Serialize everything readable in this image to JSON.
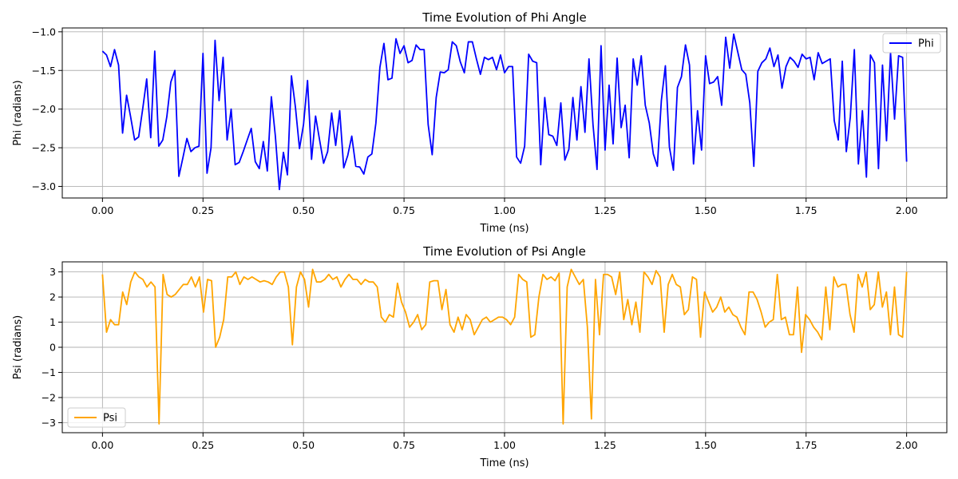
{
  "chart_data": [
    {
      "type": "line",
      "title": "Time Evolution of Phi Angle",
      "xlabel": "Time (ns)",
      "ylabel": "Phi (radians)",
      "xlim": [
        -0.1,
        2.1
      ],
      "ylim": [
        -3.15,
        -0.95
      ],
      "xticks": [
        "0.00",
        "0.25",
        "0.50",
        "0.75",
        "1.00",
        "1.25",
        "1.50",
        "1.75",
        "2.00"
      ],
      "xtick_values": [
        0,
        0.25,
        0.5,
        0.75,
        1.0,
        1.25,
        1.5,
        1.75,
        2.0
      ],
      "yticks": [
        "−3.0",
        "−2.5",
        "−2.0",
        "−1.5",
        "−1.0"
      ],
      "ytick_values": [
        -3.0,
        -2.5,
        -2.0,
        -1.5,
        -1.0
      ],
      "grid": true,
      "legend_position": "upper right",
      "x_start": 0,
      "x_end": 2.0,
      "series": [
        {
          "name": "Phi",
          "color": "#0000ff",
          "values": [
            -1.25,
            -1.3,
            -1.45,
            -1.23,
            -1.43,
            -2.31,
            -1.82,
            -2.1,
            -2.4,
            -2.36,
            -2.0,
            -1.61,
            -2.37,
            -1.25,
            -2.48,
            -2.4,
            -2.1,
            -1.65,
            -1.5,
            -2.87,
            -2.63,
            -2.38,
            -2.55,
            -2.5,
            -2.48,
            -1.28,
            -2.83,
            -2.5,
            -1.11,
            -1.89,
            -1.33,
            -2.4,
            -2.0,
            -2.72,
            -2.69,
            -2.55,
            -2.4,
            -2.25,
            -2.68,
            -2.77,
            -2.42,
            -2.8,
            -1.84,
            -2.35,
            -3.04,
            -2.56,
            -2.85,
            -1.57,
            -1.98,
            -2.51,
            -2.2,
            -1.63,
            -2.65,
            -2.09,
            -2.4,
            -2.7,
            -2.55,
            -2.05,
            -2.47,
            -2.02,
            -2.76,
            -2.6,
            -2.35,
            -2.74,
            -2.75,
            -2.84,
            -2.62,
            -2.58,
            -2.18,
            -1.46,
            -1.15,
            -1.62,
            -1.6,
            -1.09,
            -1.28,
            -1.18,
            -1.4,
            -1.37,
            -1.17,
            -1.23,
            -1.23,
            -2.2,
            -2.59,
            -1.85,
            -1.52,
            -1.53,
            -1.49,
            -1.13,
            -1.18,
            -1.39,
            -1.53,
            -1.13,
            -1.13,
            -1.35,
            -1.55,
            -1.33,
            -1.36,
            -1.33,
            -1.49,
            -1.3,
            -1.53,
            -1.45,
            -1.45,
            -2.62,
            -2.7,
            -2.48,
            -1.29,
            -1.38,
            -1.4,
            -2.72,
            -1.85,
            -2.33,
            -2.35,
            -2.47,
            -1.92,
            -2.66,
            -2.52,
            -1.85,
            -2.4,
            -1.71,
            -2.3,
            -1.35,
            -2.2,
            -2.78,
            -1.18,
            -2.53,
            -1.69,
            -2.45,
            -1.34,
            -2.24,
            -1.95,
            -2.63,
            -1.35,
            -1.69,
            -1.31,
            -1.95,
            -2.18,
            -2.58,
            -2.74,
            -1.89,
            -1.44,
            -2.49,
            -2.79,
            -1.72,
            -1.58,
            -1.17,
            -1.43,
            -2.71,
            -2.02,
            -2.53,
            -1.31,
            -1.67,
            -1.65,
            -1.58,
            -1.95,
            -1.07,
            -1.47,
            -1.03,
            -1.26,
            -1.49,
            -1.55,
            -1.92,
            -2.74,
            -1.51,
            -1.4,
            -1.35,
            -1.21,
            -1.45,
            -1.3,
            -1.73,
            -1.45,
            -1.33,
            -1.38,
            -1.46,
            -1.29,
            -1.35,
            -1.33,
            -1.62,
            -1.27,
            -1.41,
            -1.38,
            -1.35,
            -2.15,
            -2.4,
            -1.38,
            -2.55,
            -2.1,
            -1.23,
            -2.71,
            -2.02,
            -2.88,
            -1.3,
            -1.4,
            -2.77,
            -1.43,
            -2.41,
            -1.27,
            -2.13,
            -1.31,
            -1.33,
            -2.68
          ]
        }
      ]
    },
    {
      "type": "line",
      "title": "Time Evolution of Psi Angle",
      "xlabel": "Time (ns)",
      "ylabel": "Psi (radians)",
      "xlim": [
        -0.1,
        2.1
      ],
      "ylim": [
        -3.4,
        3.4
      ],
      "xticks": [
        "0.00",
        "0.25",
        "0.50",
        "0.75",
        "1.00",
        "1.25",
        "1.50",
        "1.75",
        "2.00"
      ],
      "xtick_values": [
        0,
        0.25,
        0.5,
        0.75,
        1.0,
        1.25,
        1.5,
        1.75,
        2.0
      ],
      "yticks": [
        "−3",
        "−2",
        "−1",
        "0",
        "1",
        "2",
        "3"
      ],
      "ytick_values": [
        -3,
        -2,
        -1,
        0,
        1,
        2,
        3
      ],
      "grid": true,
      "legend_position": "lower left",
      "x_start": 0,
      "x_end": 2.0,
      "series": [
        {
          "name": "Psi",
          "color": "#ffa500",
          "values": [
            2.9,
            0.6,
            1.1,
            0.9,
            0.9,
            2.2,
            1.7,
            2.6,
            3.0,
            2.8,
            2.7,
            2.4,
            2.6,
            2.4,
            -3.05,
            2.9,
            2.1,
            2.0,
            2.1,
            2.3,
            2.5,
            2.5,
            2.8,
            2.4,
            2.8,
            1.4,
            2.7,
            2.65,
            0.0,
            0.4,
            1.1,
            2.8,
            2.8,
            3.0,
            2.5,
            2.8,
            2.7,
            2.8,
            2.7,
            2.6,
            2.65,
            2.6,
            2.5,
            2.8,
            3.0,
            3.0,
            2.4,
            0.1,
            2.4,
            3.0,
            2.7,
            1.6,
            3.1,
            2.6,
            2.6,
            2.7,
            2.9,
            2.7,
            2.8,
            2.4,
            2.7,
            2.9,
            2.7,
            2.7,
            2.5,
            2.7,
            2.6,
            2.6,
            2.4,
            1.2,
            1.0,
            1.3,
            1.2,
            2.55,
            1.8,
            1.4,
            0.8,
            1.0,
            1.3,
            0.7,
            0.9,
            2.6,
            2.65,
            2.65,
            1.5,
            2.3,
            0.9,
            0.6,
            1.2,
            0.7,
            1.3,
            1.1,
            0.5,
            0.8,
            1.1,
            1.2,
            1.0,
            1.1,
            1.2,
            1.2,
            1.1,
            0.9,
            1.2,
            2.9,
            2.7,
            2.6,
            0.4,
            0.5,
            2.0,
            2.9,
            2.7,
            2.8,
            2.65,
            2.95,
            -3.05,
            2.4,
            3.1,
            2.8,
            2.5,
            2.7,
            0.8,
            -2.85,
            2.7,
            0.5,
            2.9,
            2.9,
            2.8,
            2.1,
            3.0,
            1.1,
            1.9,
            0.9,
            1.8,
            0.6,
            3.0,
            2.8,
            2.5,
            3.05,
            2.8,
            0.6,
            2.5,
            2.9,
            2.5,
            2.4,
            1.3,
            1.5,
            2.8,
            2.7,
            0.4,
            2.2,
            1.8,
            1.4,
            1.6,
            2.0,
            1.4,
            1.6,
            1.3,
            1.2,
            0.8,
            0.5,
            2.2,
            2.2,
            1.9,
            1.4,
            0.8,
            1.0,
            1.1,
            2.9,
            1.1,
            1.2,
            0.5,
            0.5,
            2.4,
            -0.2,
            1.3,
            1.1,
            0.8,
            0.6,
            0.3,
            2.4,
            0.7,
            2.8,
            2.4,
            2.5,
            2.5,
            1.3,
            0.6,
            2.9,
            2.4,
            3.0,
            1.5,
            1.7,
            3.0,
            1.6,
            2.2,
            0.5,
            2.4,
            0.5,
            0.4,
            3.0
          ]
        }
      ]
    }
  ]
}
